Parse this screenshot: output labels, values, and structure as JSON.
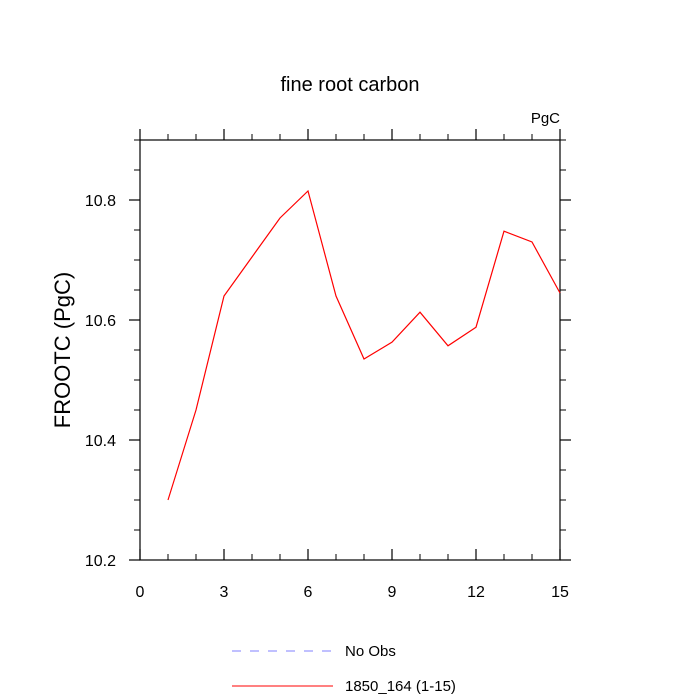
{
  "chart_data": {
    "type": "line",
    "title": "fine root carbon",
    "units_label": "PgC",
    "ylabel": "FROOTC  (PgC)",
    "xlabel": "",
    "xlim": [
      0,
      15
    ],
    "ylim": [
      10.2,
      10.9
    ],
    "x_ticks": [
      0,
      3,
      6,
      9,
      12,
      15
    ],
    "x_tick_labels": [
      "0",
      "3",
      "6",
      "9",
      "12",
      "15"
    ],
    "y_ticks": [
      10.2,
      10.4,
      10.6,
      10.8
    ],
    "y_tick_labels": [
      "10.2",
      "10.4",
      "10.6",
      "10.8"
    ],
    "grid": false,
    "legend_position": "bottom",
    "series": [
      {
        "name": "1850_164 (1-15)",
        "color": "#ff0000",
        "dash": "solid",
        "x": [
          1,
          2,
          3,
          4,
          5,
          6,
          7,
          8,
          9,
          10,
          11,
          12,
          13,
          14,
          15
        ],
        "y": [
          10.3,
          10.45,
          10.64,
          10.705,
          10.77,
          10.815,
          10.64,
          10.535,
          10.563,
          10.613,
          10.557,
          10.588,
          10.748,
          10.73,
          10.645
        ]
      }
    ],
    "legend": [
      {
        "label": "No Obs",
        "color": "#8080ff",
        "dash": "dashed"
      },
      {
        "label": "1850_164 (1-15)",
        "color": "#ff0000",
        "dash": "solid"
      }
    ]
  }
}
